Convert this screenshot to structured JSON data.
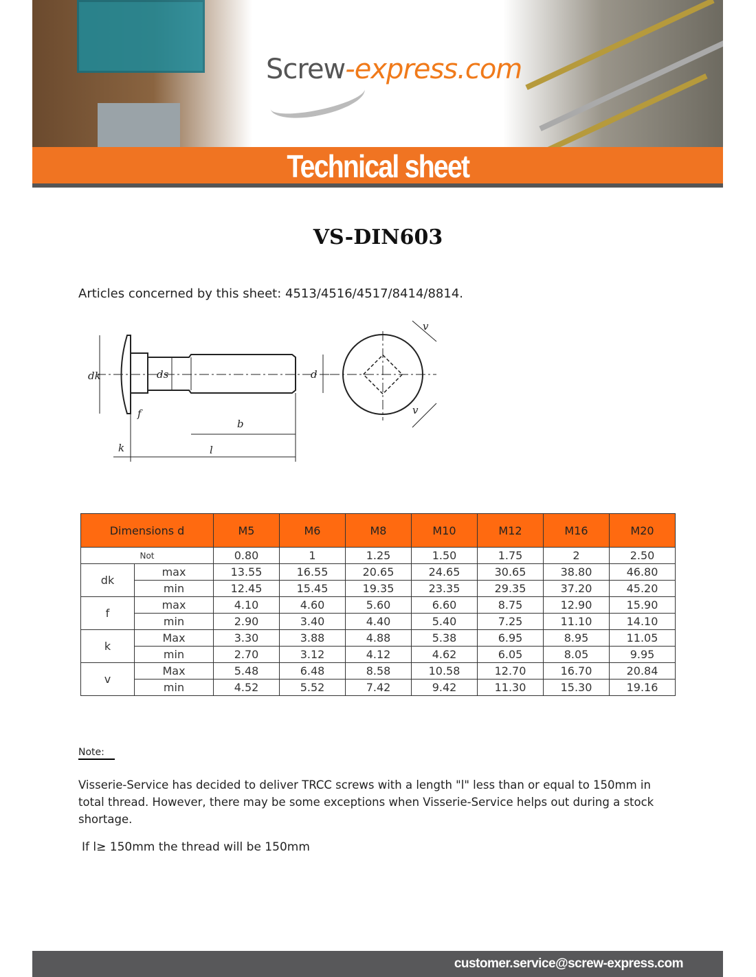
{
  "header": {
    "logo_part1": "Screw",
    "logo_part2": "-express.com",
    "banner_title": "Technical sheet",
    "accent_color": "#f07422"
  },
  "document": {
    "title": "VS-DIN603",
    "articles": "Articles concerned by this sheet: 4513/4516/4517/8414/8814.",
    "diagram_labels": [
      "dk",
      "ds",
      "d",
      "f",
      "b",
      "k",
      "l",
      "v",
      "v"
    ]
  },
  "table": {
    "header_label": "Dimensions d",
    "sizes": [
      "M5",
      "M6",
      "M8",
      "M10",
      "M12",
      "M16",
      "M20"
    ],
    "pitch_label": "Not",
    "pitch": [
      "0.80",
      "1",
      "1.25",
      "1.50",
      "1.75",
      "2",
      "2.50"
    ],
    "groups": [
      {
        "name": "dk",
        "rows": [
          {
            "label": "max",
            "values": [
              "13.55",
              "16.55",
              "20.65",
              "24.65",
              "30.65",
              "38.80",
              "46.80"
            ]
          },
          {
            "label": "min",
            "values": [
              "12.45",
              "15.45",
              "19.35",
              "23.35",
              "29.35",
              "37.20",
              "45.20"
            ]
          }
        ]
      },
      {
        "name": "f",
        "rows": [
          {
            "label": "max",
            "values": [
              "4.10",
              "4.60",
              "5.60",
              "6.60",
              "8.75",
              "12.90",
              "15.90"
            ]
          },
          {
            "label": "min",
            "values": [
              "2.90",
              "3.40",
              "4.40",
              "5.40",
              "7.25",
              "11.10",
              "14.10"
            ]
          }
        ]
      },
      {
        "name": "k",
        "rows": [
          {
            "label": "Max",
            "values": [
              "3.30",
              "3.88",
              "4.88",
              "5.38",
              "6.95",
              "8.95",
              "11.05"
            ]
          },
          {
            "label": "min",
            "values": [
              "2.70",
              "3.12",
              "4.12",
              "4.62",
              "6.05",
              "8.05",
              "9.95"
            ]
          }
        ]
      },
      {
        "name": "v",
        "rows": [
          {
            "label": "Max",
            "values": [
              "5.48",
              "6.48",
              "8.58",
              "10.58",
              "12.70",
              "16.70",
              "20.84"
            ]
          },
          {
            "label": "min",
            "values": [
              "4.52",
              "5.52",
              "7.42",
              "9.42",
              "11.30",
              "15.30",
              "19.16"
            ]
          }
        ]
      }
    ]
  },
  "notes": {
    "label": "Note:",
    "text": "Visserie-Service has decided to deliver TRCC screws with a length \"l\" less than or equal to 150mm in total thread. However, there may be some exceptions when Visserie-Service helps out during a stock shortage.",
    "rule": "If l≥ 150mm the thread will be 150mm"
  },
  "footer": {
    "email": "customer.service@screw-express.com"
  }
}
